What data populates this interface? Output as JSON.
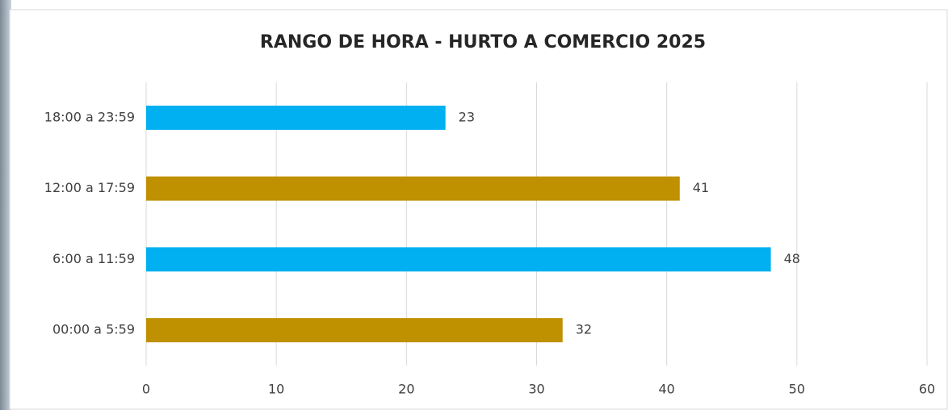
{
  "chart_data": {
    "type": "hbar",
    "title": "RANGO DE HORA - HURTO A COMERCIO 2025",
    "categories": [
      "18:00 a 23:59",
      "12:00 a 17:59",
      "6:00 a 11:59",
      "00:00 a 5:59"
    ],
    "values": [
      23,
      41,
      48,
      32
    ],
    "colors": [
      "#00b0f0",
      "#bf9000",
      "#00b0f0",
      "#bf9000"
    ],
    "xlim": [
      0,
      60
    ],
    "xticks": [
      0,
      10,
      20,
      30,
      40,
      50,
      60
    ],
    "grid": true
  }
}
